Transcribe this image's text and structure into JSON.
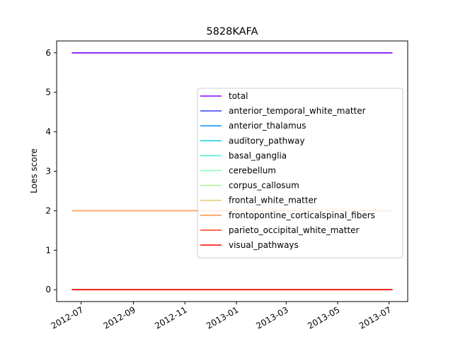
{
  "chart_data": {
    "type": "line",
    "title": "5828KAFA",
    "xlabel": "",
    "ylabel": "Loes score",
    "x": [
      "2012-06-20",
      "2013-07-05"
    ],
    "xlim": [
      "2012-06-02",
      "2013-07-23"
    ],
    "ylim": [
      -0.3,
      6.3
    ],
    "yticks": [
      0,
      1,
      2,
      3,
      4,
      5,
      6
    ],
    "xticks": [
      "2012-07",
      "2012-09",
      "2012-11",
      "2013-01",
      "2013-03",
      "2013-05",
      "2013-07"
    ],
    "grid": false,
    "legend_position": "right",
    "series": [
      {
        "name": "total",
        "color": "#8000ff",
        "values": [
          6,
          6
        ]
      },
      {
        "name": "anterior_temporal_white_matter",
        "color": "#4a4afc",
        "values": [
          0,
          0
        ]
      },
      {
        "name": "anterior_thalamus",
        "color": "#1996f3",
        "values": [
          0,
          0
        ]
      },
      {
        "name": "auditory_pathway",
        "color": "#1dd0e2",
        "values": [
          0,
          0
        ]
      },
      {
        "name": "basal_ganglia",
        "color": "#4df3ce",
        "values": [
          0,
          0
        ]
      },
      {
        "name": "cerebellum",
        "color": "#80ffb4",
        "values": [
          0,
          0
        ]
      },
      {
        "name": "corpus_callosum",
        "color": "#b2f396",
        "values": [
          0,
          0
        ]
      },
      {
        "name": "frontal_white_matter",
        "color": "#e6cf74",
        "values": [
          0,
          0
        ]
      },
      {
        "name": "frontopontine_corticalspinal_fibers",
        "color": "#ff9650",
        "values": [
          2,
          2
        ]
      },
      {
        "name": "parieto_occipital_white_matter",
        "color": "#ff4a26",
        "values": [
          0,
          0
        ]
      },
      {
        "name": "visual_pathways",
        "color": "#ff0000",
        "values": [
          0,
          0
        ]
      }
    ]
  }
}
